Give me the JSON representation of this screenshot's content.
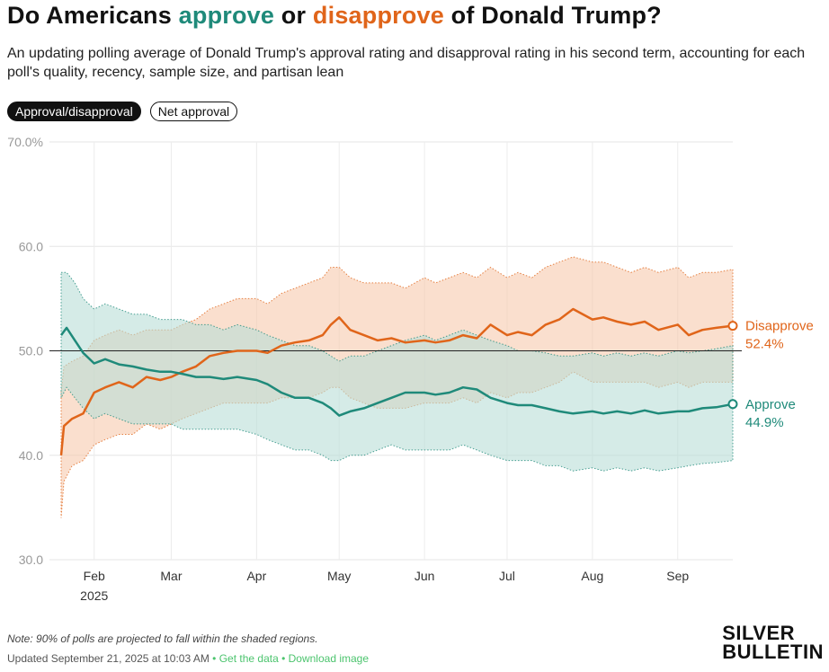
{
  "header": {
    "title_prefix": "Do Americans ",
    "title_approve": "approve",
    "title_mid": " or ",
    "title_disapprove": "disapprove",
    "title_suffix": " of Donald Trump?",
    "subtitle": "An updating polling average of Donald Trump's approval rating and disapproval rating in his second term, accounting for each poll's quality, recency, sample size, and partisan lean"
  },
  "toggles": {
    "approval_label": "Approval/disapproval",
    "net_label": "Net approval"
  },
  "colors": {
    "approve": "#1f8a7a",
    "disapprove": "#e0651a",
    "approve_band": "#b9ded7",
    "disapprove_band": "#f6c9ad"
  },
  "chart_data": {
    "type": "line",
    "title": "",
    "xlabel": "",
    "ylabel": "",
    "ylim": [
      30,
      70
    ],
    "yticks": [
      30,
      40,
      50,
      60,
      70
    ],
    "ytick_labels": [
      "30.0",
      "40.0",
      "50.0",
      "60.0",
      "70.0%"
    ],
    "xlim": [
      "2025-01-20",
      "2025-09-21"
    ],
    "xticks": [
      {
        "date": "2025-02-01",
        "label": "Feb",
        "sublabel": "2025"
      },
      {
        "date": "2025-03-01",
        "label": "Mar"
      },
      {
        "date": "2025-04-01",
        "label": "Apr"
      },
      {
        "date": "2025-05-01",
        "label": "May"
      },
      {
        "date": "2025-06-01",
        "label": "Jun"
      },
      {
        "date": "2025-07-01",
        "label": "Jul"
      },
      {
        "date": "2025-08-01",
        "label": "Aug"
      },
      {
        "date": "2025-09-01",
        "label": "Sep"
      }
    ],
    "reference_line": 50,
    "series": [
      {
        "name": "Disapprove",
        "end_value": 52.4,
        "end_label": "52.4%",
        "x": [
          "2025-01-20",
          "2025-01-21",
          "2025-01-24",
          "2025-01-28",
          "2025-02-01",
          "2025-02-05",
          "2025-02-10",
          "2025-02-15",
          "2025-02-20",
          "2025-02-25",
          "2025-03-01",
          "2025-03-05",
          "2025-03-10",
          "2025-03-15",
          "2025-03-20",
          "2025-03-25",
          "2025-04-01",
          "2025-04-05",
          "2025-04-10",
          "2025-04-15",
          "2025-04-20",
          "2025-04-25",
          "2025-04-28",
          "2025-05-01",
          "2025-05-05",
          "2025-05-10",
          "2025-05-15",
          "2025-05-20",
          "2025-05-25",
          "2025-06-01",
          "2025-06-05",
          "2025-06-10",
          "2025-06-15",
          "2025-06-20",
          "2025-06-25",
          "2025-07-01",
          "2025-07-05",
          "2025-07-10",
          "2025-07-15",
          "2025-07-20",
          "2025-07-25",
          "2025-08-01",
          "2025-08-05",
          "2025-08-10",
          "2025-08-15",
          "2025-08-20",
          "2025-08-25",
          "2025-09-01",
          "2025-09-05",
          "2025-09-10",
          "2025-09-15",
          "2025-09-21"
        ],
        "values": [
          40.0,
          42.8,
          43.5,
          44.0,
          46.0,
          46.5,
          47.0,
          46.5,
          47.5,
          47.2,
          47.5,
          48.0,
          48.5,
          49.5,
          49.8,
          50.0,
          50.0,
          49.8,
          50.5,
          50.8,
          51.0,
          51.5,
          52.5,
          53.2,
          52.0,
          51.5,
          51.0,
          51.2,
          50.8,
          51.0,
          50.8,
          51.0,
          51.5,
          51.2,
          52.5,
          51.5,
          51.8,
          51.5,
          52.5,
          53.0,
          54.0,
          53.0,
          53.2,
          52.8,
          52.5,
          52.8,
          52.0,
          52.5,
          51.5,
          52.0,
          52.2,
          52.4
        ],
        "lower": [
          34.0,
          37.5,
          39.0,
          39.5,
          41.0,
          41.5,
          42.0,
          42.0,
          43.0,
          42.5,
          43.0,
          43.5,
          44.0,
          44.5,
          45.0,
          45.0,
          45.0,
          45.0,
          45.5,
          45.5,
          45.5,
          46.0,
          46.5,
          46.5,
          45.5,
          45.0,
          44.5,
          44.5,
          44.5,
          45.0,
          45.0,
          45.0,
          45.5,
          45.0,
          46.0,
          45.5,
          46.0,
          46.0,
          46.5,
          47.0,
          48.0,
          47.0,
          47.0,
          47.0,
          47.0,
          47.0,
          46.5,
          47.0,
          46.5,
          47.0,
          47.0,
          47.0
        ],
        "upper": [
          46.0,
          48.5,
          49.0,
          49.5,
          51.0,
          51.5,
          52.0,
          51.5,
          52.0,
          52.0,
          52.0,
          52.5,
          53.0,
          54.0,
          54.5,
          55.0,
          55.0,
          54.5,
          55.5,
          56.0,
          56.5,
          57.0,
          58.0,
          58.0,
          57.0,
          56.5,
          56.5,
          56.5,
          56.0,
          57.0,
          56.5,
          57.0,
          57.5,
          57.0,
          58.0,
          57.0,
          57.5,
          57.0,
          58.0,
          58.5,
          59.0,
          58.5,
          58.5,
          58.0,
          57.5,
          58.0,
          57.5,
          58.0,
          57.0,
          57.5,
          57.5,
          57.8
        ]
      },
      {
        "name": "Approve",
        "end_value": 44.9,
        "end_label": "44.9%",
        "x": [
          "2025-01-20",
          "2025-01-22",
          "2025-01-25",
          "2025-01-28",
          "2025-02-01",
          "2025-02-05",
          "2025-02-10",
          "2025-02-15",
          "2025-02-20",
          "2025-02-25",
          "2025-03-01",
          "2025-03-05",
          "2025-03-10",
          "2025-03-15",
          "2025-03-20",
          "2025-03-25",
          "2025-04-01",
          "2025-04-05",
          "2025-04-10",
          "2025-04-15",
          "2025-04-20",
          "2025-04-25",
          "2025-04-28",
          "2025-05-01",
          "2025-05-05",
          "2025-05-10",
          "2025-05-15",
          "2025-05-20",
          "2025-05-25",
          "2025-06-01",
          "2025-06-05",
          "2025-06-10",
          "2025-06-15",
          "2025-06-20",
          "2025-06-25",
          "2025-07-01",
          "2025-07-05",
          "2025-07-10",
          "2025-07-15",
          "2025-07-20",
          "2025-07-25",
          "2025-08-01",
          "2025-08-05",
          "2025-08-10",
          "2025-08-15",
          "2025-08-20",
          "2025-08-25",
          "2025-09-01",
          "2025-09-05",
          "2025-09-10",
          "2025-09-15",
          "2025-09-21"
        ],
        "values": [
          51.5,
          52.2,
          51.0,
          49.8,
          48.8,
          49.2,
          48.7,
          48.5,
          48.2,
          48.0,
          48.0,
          47.8,
          47.5,
          47.5,
          47.3,
          47.5,
          47.2,
          46.8,
          46.0,
          45.5,
          45.5,
          45.0,
          44.5,
          43.8,
          44.2,
          44.5,
          45.0,
          45.5,
          46.0,
          46.0,
          45.8,
          46.0,
          46.5,
          46.3,
          45.5,
          45.0,
          44.8,
          44.8,
          44.5,
          44.2,
          44.0,
          44.2,
          44.0,
          44.2,
          44.0,
          44.3,
          44.0,
          44.2,
          44.2,
          44.5,
          44.6,
          44.9
        ],
        "lower": [
          45.5,
          46.5,
          45.5,
          44.5,
          43.5,
          44.0,
          43.5,
          43.0,
          43.0,
          43.0,
          43.0,
          42.5,
          42.5,
          42.5,
          42.5,
          42.5,
          42.0,
          41.5,
          41.0,
          40.5,
          40.5,
          40.0,
          39.5,
          39.5,
          40.0,
          40.0,
          40.5,
          41.0,
          40.5,
          40.5,
          40.5,
          40.5,
          41.0,
          40.5,
          40.0,
          39.5,
          39.5,
          39.5,
          39.0,
          39.0,
          38.5,
          38.8,
          38.5,
          38.8,
          38.5,
          38.8,
          38.5,
          38.8,
          39.0,
          39.2,
          39.3,
          39.5
        ],
        "upper": [
          57.5,
          57.5,
          56.5,
          55.0,
          54.0,
          54.5,
          54.0,
          53.5,
          53.5,
          53.0,
          53.0,
          53.0,
          52.5,
          52.5,
          52.0,
          52.5,
          52.0,
          51.5,
          51.0,
          50.5,
          50.5,
          50.0,
          49.5,
          49.0,
          49.5,
          49.5,
          50.0,
          50.5,
          51.0,
          51.5,
          51.0,
          51.5,
          52.0,
          51.5,
          51.0,
          50.5,
          50.0,
          50.0,
          49.8,
          49.5,
          49.5,
          49.8,
          49.5,
          49.8,
          49.5,
          49.8,
          49.5,
          50.0,
          49.8,
          50.0,
          50.2,
          50.5
        ]
      }
    ]
  },
  "footer": {
    "note": "Note: 90% of polls are projected to fall within the shaded regions.",
    "updated": "Updated September 21, 2025 at 10:03 AM",
    "separator": " • ",
    "get_data": "Get the data",
    "download": "Download image",
    "logo_line1": "SILVER",
    "logo_line2": "BULLETIN"
  }
}
